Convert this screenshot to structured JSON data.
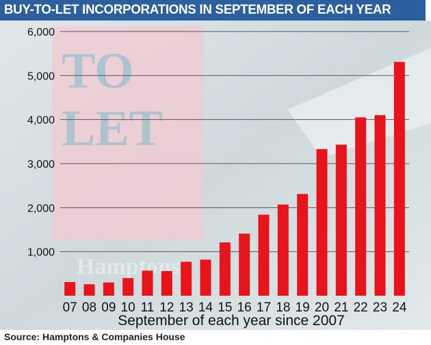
{
  "colors": {
    "header_bg": "#2c5f9e",
    "bar": "#e8141b",
    "grid": "#555555",
    "text": "#111111"
  },
  "header": {
    "title": "BUY-TO-LET INCORPORATIONS IN SEPTEMBER OF EACH YEAR"
  },
  "background_sign": {
    "line1": "TO",
    "line2": "LET",
    "brand": "Hamptons"
  },
  "source": "Source: Hamptons & Companies House",
  "chart_data": {
    "type": "bar",
    "title": "BUY-TO-LET INCORPORATIONS IN SEPTEMBER OF EACH YEAR",
    "xlabel": "September of each year since 2007",
    "ylabel": "",
    "ylim": [
      0,
      6000
    ],
    "yticks": [
      1000,
      2000,
      3000,
      4000,
      5000,
      6000
    ],
    "ytick_labels": [
      "1,000",
      "2,000",
      "3,000",
      "4,000",
      "5,000",
      "6,000"
    ],
    "grid": true,
    "categories": [
      "07",
      "08",
      "09",
      "10",
      "11",
      "12",
      "13",
      "14",
      "15",
      "16",
      "17",
      "18",
      "19",
      "20",
      "21",
      "22",
      "23",
      "24"
    ],
    "values": [
      310,
      260,
      300,
      400,
      570,
      560,
      770,
      820,
      1210,
      1410,
      1840,
      2070,
      2310,
      3330,
      3430,
      4050,
      4100,
      5310
    ]
  }
}
